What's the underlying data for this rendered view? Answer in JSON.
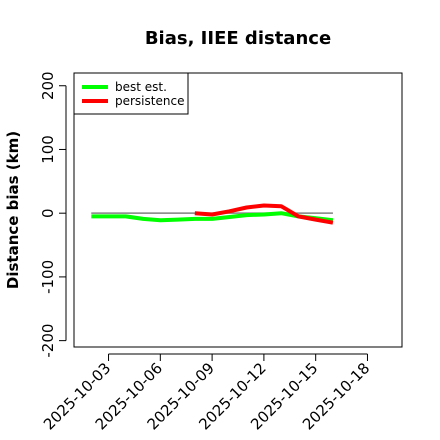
{
  "chart_data": {
    "type": "line",
    "title": "Bias, IIEE distance",
    "xlabel": "",
    "ylabel": "Distance bias (km)",
    "ylim": [
      -210,
      220
    ],
    "xlim": [
      "2025-10-01",
      "2025-10-20"
    ],
    "x_ticks": [
      "2025-10-03",
      "2025-10-06",
      "2025-10-09",
      "2025-10-12",
      "2025-10-15",
      "2025-10-18"
    ],
    "y_ticks": [
      -200,
      -100,
      0,
      100,
      200
    ],
    "grid": false,
    "legend_position": "top-left",
    "reference_line": {
      "y": 0,
      "color": "#808080"
    },
    "series": [
      {
        "name": "best est.",
        "color": "#00ff00",
        "x": [
          "2025-10-02",
          "2025-10-03",
          "2025-10-04",
          "2025-10-05",
          "2025-10-06",
          "2025-10-07",
          "2025-10-08",
          "2025-10-09",
          "2025-10-10",
          "2025-10-11",
          "2025-10-12",
          "2025-10-13",
          "2025-10-14",
          "2025-10-15",
          "2025-10-16"
        ],
        "values": [
          -5,
          -5,
          -5,
          -9,
          -11,
          -10,
          -9,
          -9,
          -6,
          -3,
          -2,
          0,
          -5,
          -8,
          -11
        ]
      },
      {
        "name": "persistence",
        "color": "#ff0000",
        "x": [
          "2025-10-08",
          "2025-10-09",
          "2025-10-10",
          "2025-10-11",
          "2025-10-12",
          "2025-10-13",
          "2025-10-14",
          "2025-10-15",
          "2025-10-16"
        ],
        "values": [
          0,
          -2,
          3,
          9,
          12,
          11,
          -5,
          -10,
          -15
        ]
      }
    ]
  }
}
